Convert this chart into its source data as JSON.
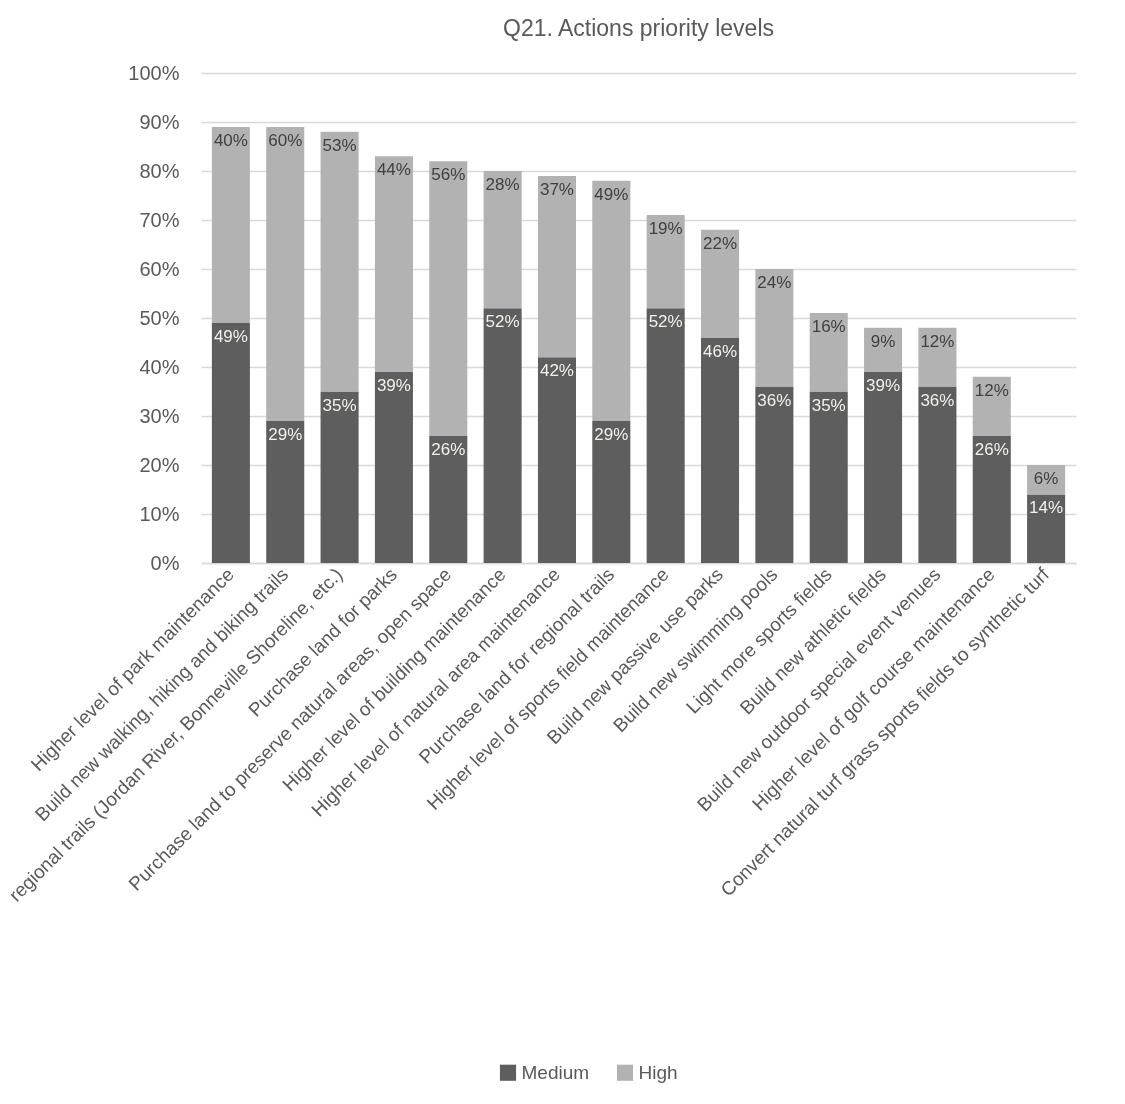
{
  "chart_data": {
    "type": "bar",
    "title": "Q21. Actions priority levels",
    "categories": [
      "Higher level of park maintenance",
      "Build new walking, hiking and biking trails",
      "regional trails (Jordan River, Bonneville Shoreline, etc.)",
      "Purchase land for parks",
      "Purchase land to preserve natural areas, open space",
      "Higher level of building maintenance",
      "Higher level of natural area maintenance",
      "Purchase land for regional trails",
      "Higher level of sports field maintenance",
      "Build new passive use parks",
      "Build new swimming pools",
      "Light more sports fields",
      "Build new athletic fields",
      "Build new outdoor special event venues",
      "Higher level of golf course maintenance",
      "Convert natural turf grass sports fields to synthetic turf"
    ],
    "stacked": true,
    "series": [
      {
        "name": "Medium",
        "color": "#5e5e5e",
        "values": [
          49,
          29,
          35,
          39,
          26,
          52,
          42,
          29,
          52,
          46,
          36,
          35,
          39,
          36,
          26,
          14
        ],
        "value_labels": [
          "49%",
          "29%",
          "35%",
          "39%",
          "26%",
          "52%",
          "42%",
          "29%",
          "52%",
          "46%",
          "36%",
          "35%",
          "39%",
          "36%",
          "26%",
          "14%"
        ]
      },
      {
        "name": "High",
        "color": "#b2b2b2",
        "values": [
          40,
          60,
          53,
          44,
          56,
          28,
          37,
          49,
          19,
          22,
          24,
          16,
          9,
          12,
          12,
          6
        ],
        "value_labels": [
          "40%",
          "60%",
          "53%",
          "44%",
          "56%",
          "28%",
          "37%",
          "49%",
          "19%",
          "22%",
          "24%",
          "16%",
          "9%",
          "12%",
          "12%",
          "6%"
        ]
      }
    ],
    "ylim": [
      0,
      100
    ],
    "yticks": [
      {
        "value": 0,
        "label": "0%"
      },
      {
        "value": 10,
        "label": "10%"
      },
      {
        "value": 20,
        "label": "20%"
      },
      {
        "value": 30,
        "label": "30%"
      },
      {
        "value": 40,
        "label": "40%"
      },
      {
        "value": 50,
        "label": "50%"
      },
      {
        "value": 60,
        "label": "60%"
      },
      {
        "value": 70,
        "label": "70%"
      },
      {
        "value": 80,
        "label": "80%"
      },
      {
        "value": 90,
        "label": "90%"
      },
      {
        "value": 100,
        "label": "100%"
      }
    ],
    "grid": "y",
    "legend": "bottom"
  }
}
